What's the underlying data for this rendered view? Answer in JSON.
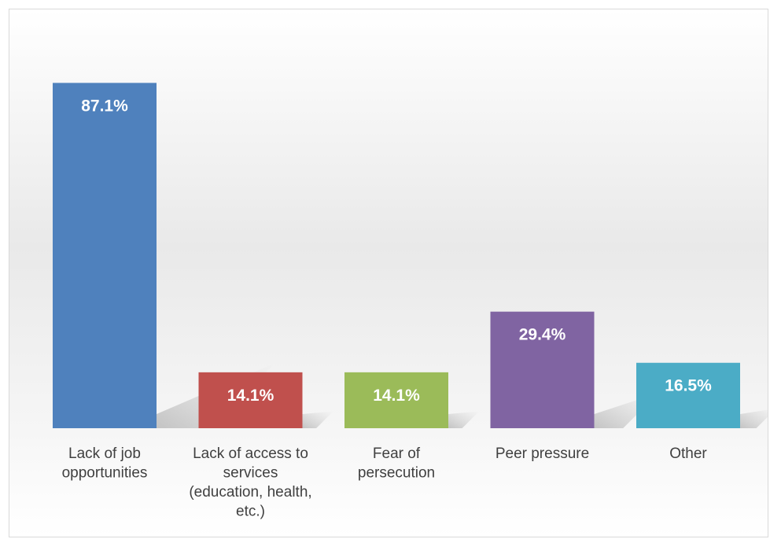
{
  "chart_data": {
    "type": "bar",
    "categories": [
      [
        "Lack of job",
        "opportunities"
      ],
      [
        "Lack of access to",
        "services",
        "(education, health,",
        "etc.)"
      ],
      [
        "Fear of",
        "persecution"
      ],
      [
        "Peer pressure"
      ],
      [
        "Other"
      ]
    ],
    "values": [
      87.1,
      14.1,
      14.1,
      29.4,
      16.5
    ],
    "data_labels": [
      "87.1%",
      "14.1%",
      "14.1%",
      "29.4%",
      "16.5%"
    ],
    "colors": [
      "#4F81BD",
      "#C0504D",
      "#9BBB59",
      "#8064A2",
      "#4BACC6"
    ],
    "title": "",
    "xlabel": "",
    "ylabel": "",
    "ylim": [
      0,
      100
    ],
    "grid": false,
    "legend": "none"
  }
}
